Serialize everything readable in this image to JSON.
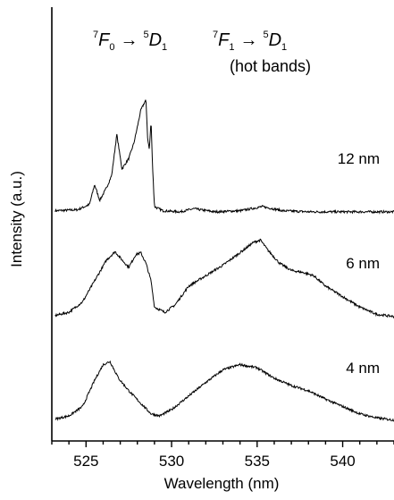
{
  "chart_data": {
    "type": "line",
    "xlabel": "Wavelength (nm)",
    "ylabel": "Intensity (a.u.)",
    "xlim": [
      523,
      543
    ],
    "x_ticks": [
      525,
      530,
      535,
      540
    ],
    "y_ticks": [],
    "grid": false,
    "annotations": {
      "transition_1": {
        "from_sup": "7",
        "from": "F",
        "from_sub": "0",
        "arrow": "→",
        "to_sup": "5",
        "to": "D",
        "to_sub": "1"
      },
      "transition_2": {
        "from_sup": "7",
        "from": "F",
        "from_sub": "1",
        "arrow": "→",
        "to_sup": "5",
        "to": "D",
        "to_sub": "1"
      },
      "transition_2_note": "(hot bands)"
    },
    "series": [
      {
        "name": "12 nm",
        "offset": 2.0,
        "x": [
          523.2,
          524.5,
          525.2,
          525.5,
          525.8,
          526.2,
          526.5,
          526.8,
          527.1,
          527.5,
          527.8,
          528.0,
          528.2,
          528.4,
          528.5,
          528.6,
          528.7,
          528.8,
          528.9,
          529.0,
          529.5,
          530.5,
          531.3,
          532.5,
          534.0,
          535.3,
          536.5,
          538.0,
          540.0,
          542.0,
          543.0
        ],
        "y": [
          0.02,
          0.03,
          0.08,
          0.27,
          0.12,
          0.24,
          0.36,
          0.75,
          0.42,
          0.52,
          0.67,
          0.82,
          0.98,
          1.05,
          1.08,
          0.72,
          0.6,
          0.88,
          0.4,
          0.06,
          0.02,
          0.01,
          0.04,
          0.01,
          0.02,
          0.06,
          0.02,
          0.01,
          0.01,
          0.01,
          0.01
        ]
      },
      {
        "name": "6 nm",
        "offset": 1.0,
        "x": [
          523.2,
          524.0,
          524.8,
          525.5,
          526.2,
          526.7,
          527.1,
          527.5,
          527.9,
          528.2,
          528.5,
          528.8,
          529.0,
          529.6,
          530.2,
          531.0,
          532.0,
          533.0,
          534.0,
          534.8,
          535.2,
          535.6,
          536.3,
          537.0,
          537.7,
          538.3,
          539.0,
          540.0,
          541.0,
          542.0,
          543.0
        ],
        "y": [
          0.02,
          0.05,
          0.15,
          0.35,
          0.55,
          0.63,
          0.55,
          0.48,
          0.6,
          0.62,
          0.52,
          0.35,
          0.1,
          0.05,
          0.12,
          0.3,
          0.4,
          0.5,
          0.62,
          0.72,
          0.74,
          0.65,
          0.52,
          0.45,
          0.43,
          0.4,
          0.3,
          0.2,
          0.1,
          0.03,
          0.01
        ]
      },
      {
        "name": "4 nm",
        "offset": 0.0,
        "x": [
          523.2,
          524.0,
          524.8,
          525.5,
          526.0,
          526.4,
          526.9,
          527.5,
          528.2,
          528.8,
          529.3,
          530.0,
          531.0,
          532.0,
          533.0,
          534.0,
          535.0,
          536.0,
          537.0,
          538.0,
          539.0,
          540.0,
          541.0,
          542.0,
          543.0
        ],
        "y": [
          0.03,
          0.06,
          0.15,
          0.4,
          0.55,
          0.58,
          0.42,
          0.3,
          0.18,
          0.08,
          0.06,
          0.12,
          0.25,
          0.38,
          0.5,
          0.55,
          0.52,
          0.42,
          0.35,
          0.3,
          0.22,
          0.15,
          0.08,
          0.04,
          0.02
        ]
      }
    ]
  }
}
